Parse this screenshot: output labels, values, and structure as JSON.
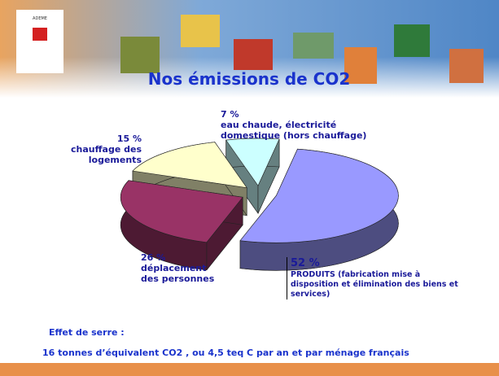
{
  "logo": "ADEME",
  "chart_data": {
    "type": "pie",
    "title": "Nos émissions de CO2",
    "categories": [
      "PRODUITS (fabrication mise à disposition et élimination des biens et services)",
      "déplacement des personnes",
      "chauffage des logements",
      "eau chaude, électricité domestique (hors chauffage)"
    ],
    "values": [
      52,
      26,
      15,
      7
    ],
    "value_labels": [
      "52 %",
      "26 %",
      "15 %",
      "7 %"
    ],
    "colors": [
      "#9999ff",
      "#993366",
      "#ffffcc",
      "#ccffff"
    ]
  },
  "footnote": [
    "Effet de serre :",
    "16 tonnes d’équivalent CO2 , ou 4,5 teq C par an et par ménage français"
  ]
}
